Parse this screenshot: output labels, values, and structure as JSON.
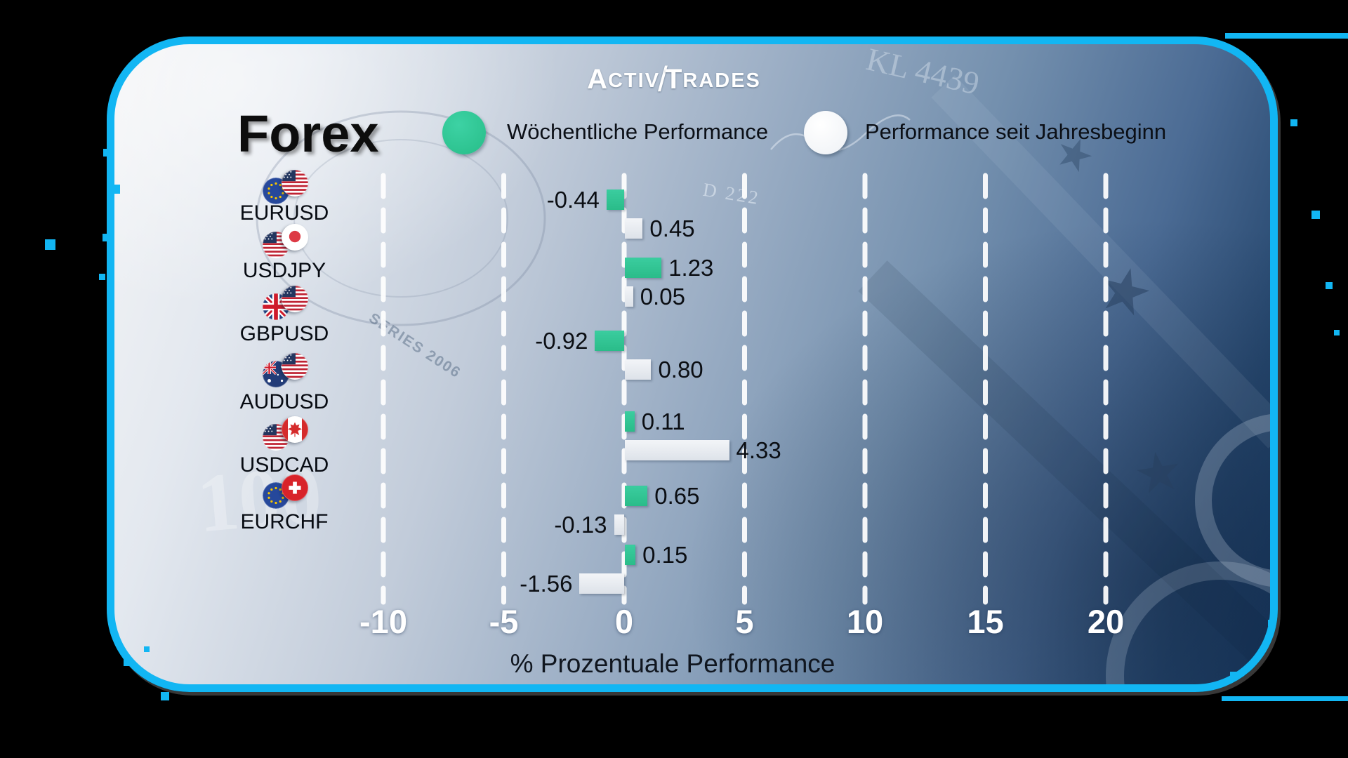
{
  "page": {
    "background": "#000000",
    "accent_cyan": "#12b6f3"
  },
  "logo": {
    "a": "A",
    "ctiv": "CTIV",
    "slash": "/",
    "t": "T",
    "rades": "RADES"
  },
  "title": "Forex",
  "legend": [
    {
      "label": "Wöchentliche Performance",
      "color": "#31c795",
      "swatch": "green-circle"
    },
    {
      "label": "Performance seit Jahresbeginn",
      "color": "#ffffff",
      "swatch": "white-circle"
    }
  ],
  "chart_data": {
    "type": "bar",
    "orientation": "horizontal",
    "title": "Forex",
    "xlabel": "% Prozentuale Performance",
    "ylabel": "",
    "categories": [
      "EURUSD",
      "USDJPY",
      "GBPUSD",
      "AUDUSD",
      "USDCAD",
      "EURCHF"
    ],
    "flags": [
      [
        "eu",
        "us"
      ],
      [
        "us",
        "jp"
      ],
      [
        "gb",
        "us"
      ],
      [
        "au",
        "us"
      ],
      [
        "us",
        "ca"
      ],
      [
        "eu",
        "ch"
      ]
    ],
    "series": [
      {
        "name": "Wöchentliche Performance",
        "color": "#31c795",
        "values": [
          -0.44,
          1.23,
          -0.92,
          0.11,
          0.65,
          0.15
        ]
      },
      {
        "name": "Performance seit Jahresbeginn",
        "color": "#e9edf2",
        "values": [
          0.45,
          0.05,
          0.8,
          4.33,
          -0.13,
          -1.56
        ]
      }
    ],
    "x_ticks": [
      "-10",
      "-5",
      "0",
      "5",
      "10",
      "15",
      "20"
    ],
    "x_tick_values": [
      -10,
      -5,
      0,
      5,
      10,
      15,
      20
    ],
    "xlim": [
      -12.5,
      22.5
    ],
    "grid": "dashed-vertical-white",
    "legend_position": "top",
    "bar_colors": {
      "weekly": "#31c795",
      "ytd": "#e9edf2"
    }
  },
  "decor": {
    "kl_serial": "KL 4439",
    "d_serial": "D 222",
    "series_note": "SERIES 2006",
    "hundred": "100"
  }
}
